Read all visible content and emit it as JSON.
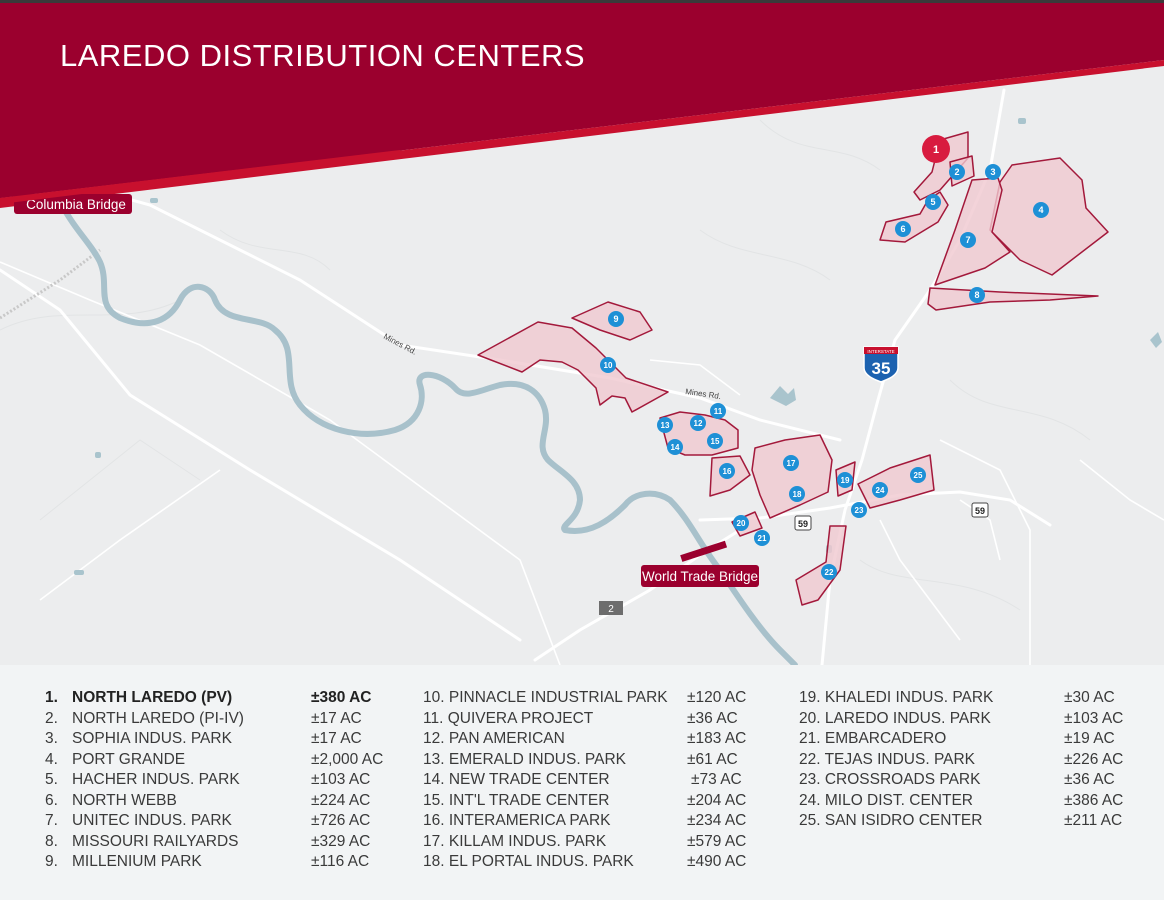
{
  "header": {
    "title": "LAREDO DISTRIBUTION CENTERS",
    "band_color": "#9b002e",
    "accent_color": "#c8102e"
  },
  "map": {
    "labels": {
      "columbia_bridge": "Columbia Bridge",
      "world_trade_bridge": "World Trade Bridge",
      "mines_rd_1": "Mines Rd.",
      "mines_rd_2": "Mines Rd.",
      "interstate_shield_top": "INTERSTATE",
      "interstate_number": "35",
      "us_59_a": "59",
      "us_59_b": "59",
      "route_2": "2"
    },
    "colors": {
      "parcel_fill": "#f0c8d0",
      "parcel_stroke": "#a3193b",
      "marker_blue": "#1e90d6",
      "marker_red": "#d81b3f",
      "river": "#a8c1cb",
      "water_body": "#a9c4cd",
      "land": "#ecedee"
    },
    "markers": [
      "1",
      "2",
      "3",
      "4",
      "5",
      "6",
      "7",
      "8",
      "9",
      "10",
      "11",
      "12",
      "13",
      "14",
      "15",
      "16",
      "17",
      "18",
      "19",
      "20",
      "21",
      "22",
      "23",
      "24",
      "25"
    ]
  },
  "legend": {
    "col1": [
      {
        "num": "1.",
        "name": "NORTH LAREDO (PV)",
        "area": "±380 AC",
        "bold": true
      },
      {
        "num": "2.",
        "name": "NORTH LAREDO (PI-IV)",
        "area": "±17 AC"
      },
      {
        "num": "3.",
        "name": "SOPHIA INDUS. PARK",
        "area": "±17 AC"
      },
      {
        "num": "4.",
        "name": "PORT GRANDE",
        "area": "±2,000 AC"
      },
      {
        "num": "5.",
        "name": "HACHER INDUS. PARK",
        "area": "±103 AC"
      },
      {
        "num": "6.",
        "name": "NORTH WEBB",
        "area": "±224 AC"
      },
      {
        "num": "7.",
        "name": "UNITEC INDUS. PARK",
        "area": "±726 AC"
      },
      {
        "num": "8.",
        "name": "MISSOURI RAILYARDS",
        "area": "±329 AC"
      },
      {
        "num": "9.",
        "name": "MILLENIUM PARK",
        "area": "±116 AC"
      }
    ],
    "col2": [
      {
        "name": "10. PINNACLE INDUSTRIAL PARK",
        "area": "±120 AC"
      },
      {
        "name": "11. QUIVERA PROJECT",
        "area": "±36 AC"
      },
      {
        "name": "12. PAN AMERICAN",
        "area": "±183 AC"
      },
      {
        "name": "13. EMERALD INDUS. PARK",
        "area": "±61 AC"
      },
      {
        "name": "14. NEW TRADE CENTER",
        "area": " ±73 AC"
      },
      {
        "name": "15. INT'L TRADE CENTER",
        "area": "±204 AC"
      },
      {
        "name": "16. INTERAMERICA PARK",
        "area": "±234 AC"
      },
      {
        "name": "17. KILLAM INDUS. PARK",
        "area": "±579 AC"
      },
      {
        "name": "18. EL PORTAL INDUS. PARK",
        "area": "±490 AC"
      }
    ],
    "col3": [
      {
        "name": "19. KHALEDI INDUS. PARK",
        "area": "±30 AC"
      },
      {
        "name": "20. LAREDO INDUS. PARK",
        "area": "±103 AC"
      },
      {
        "name": "21. EMBARCADERO",
        "area": "±19 AC"
      },
      {
        "name": "22. TEJAS INDUS. PARK",
        "area": "±226 AC"
      },
      {
        "name": "23. CROSSROADS PARK",
        "area": "±36 AC"
      },
      {
        "name": "24. MILO DIST. CENTER",
        "area": "±386 AC"
      },
      {
        "name": "25. SAN ISIDRO CENTER",
        "area": "±211 AC"
      }
    ]
  }
}
